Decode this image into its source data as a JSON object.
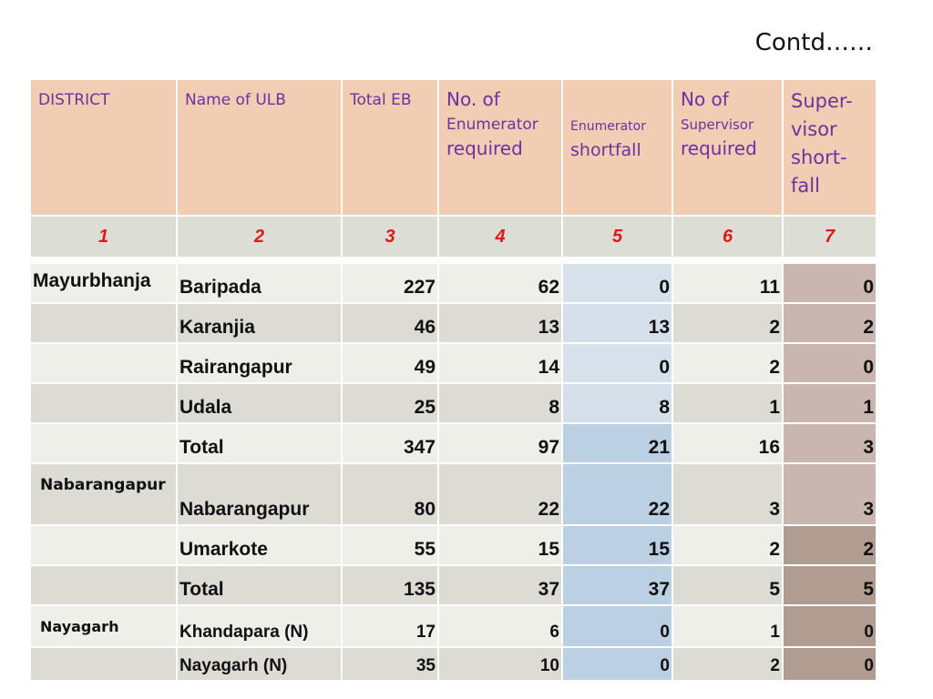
{
  "contd": "Contd……",
  "header": {
    "district": "DISTRICT",
    "ulb": "Name of ULB",
    "total_eb": "Total EB",
    "enum_req": {
      "l1": "No. of",
      "l2": "Enumerator",
      "l3": "required"
    },
    "enum_short": {
      "l1": "Enumerator",
      "l2": "shortfall"
    },
    "sup_req": {
      "l1": "No of",
      "l2": "Supervisor",
      "l3": "required"
    },
    "sup_short": {
      "l1": "Super-",
      "l2": "visor",
      "l3": "short-",
      "l4": "fall"
    }
  },
  "index": [
    "1",
    "2",
    "3",
    "4",
    "5",
    "6",
    "7"
  ],
  "rows": [
    {
      "district": "Mayurbhanja",
      "ulb": "Baripada",
      "total_eb": "227",
      "enum_req": "62",
      "enum_short": "0",
      "sup_req": "11",
      "sup_short": "0"
    },
    {
      "district": "",
      "ulb": "Karanjia",
      "total_eb": "46",
      "enum_req": "13",
      "enum_short": "13",
      "sup_req": "2",
      "sup_short": "2"
    },
    {
      "district": "",
      "ulb": "Rairangapur",
      "total_eb": "49",
      "enum_req": "14",
      "enum_short": "0",
      "sup_req": "2",
      "sup_short": "0"
    },
    {
      "district": "",
      "ulb": "Udala",
      "total_eb": "25",
      "enum_req": "8",
      "enum_short": "8",
      "sup_req": "1",
      "sup_short": "1"
    },
    {
      "district": "",
      "ulb": "Total",
      "total_eb": "347",
      "enum_req": "97",
      "enum_short": "21",
      "sup_req": "16",
      "sup_short": "3"
    },
    {
      "district": "Nabarangapur",
      "ulb": "Nabarangapur",
      "total_eb": "80",
      "enum_req": "22",
      "enum_short": "22",
      "sup_req": "3",
      "sup_short": "3"
    },
    {
      "district": "",
      "ulb": "Umarkote",
      "total_eb": "55",
      "enum_req": "15",
      "enum_short": "15",
      "sup_req": "2",
      "sup_short": "2"
    },
    {
      "district": "",
      "ulb": "Total",
      "total_eb": "135",
      "enum_req": "37",
      "enum_short": "37",
      "sup_req": "5",
      "sup_short": "5"
    },
    {
      "district": "Nayagarh",
      "ulb": "Khandapara (N)",
      "total_eb": "17",
      "enum_req": "6",
      "enum_short": "0",
      "sup_req": "1",
      "sup_short": "0"
    },
    {
      "district": "",
      "ulb": "Nayagarh (N)",
      "total_eb": "35",
      "enum_req": "10",
      "enum_short": "0",
      "sup_req": "2",
      "sup_short": "0"
    }
  ]
}
